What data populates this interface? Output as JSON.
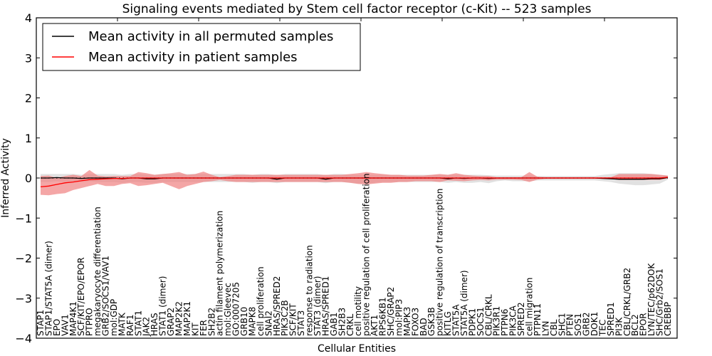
{
  "chart_data": {
    "type": "line",
    "title": "Signaling events mediated by Stem cell factor receptor (c-Kit) -- 523 samples",
    "xlabel": "Cellular Entities",
    "ylabel": "Inferred Activity",
    "ylim": [
      -4,
      4
    ],
    "yticks": [
      -4,
      -3,
      -2,
      -1,
      0,
      1,
      2,
      3,
      4
    ],
    "ytick_labels": [
      "−4",
      "−3",
      "−2",
      "−1",
      "0",
      "1",
      "2",
      "3",
      "4"
    ],
    "grid": false,
    "legend_position": "top-left",
    "legend": [
      {
        "label": "Mean activity in all permuted samples",
        "color": "#000000"
      },
      {
        "label": "Mean activity in patient samples",
        "color": "#ff0000"
      }
    ],
    "band_colors": {
      "permuted": "#d9d9d9",
      "patient": "#f08080"
    },
    "categories": [
      "STAP1",
      "STAP1/STAT5A (dimer)",
      "EPO",
      "VAV1",
      "MAP4K1",
      "SCF/KIT/EPO/EPOR",
      "PTPRO",
      "megakaryocyte differentiation",
      "GRB2/SOCS1/VAV1",
      "mol:GDP",
      "MATK",
      "RAF1",
      "STAT1",
      "JAK2",
      "HRAS",
      "STAT1 (dimer)",
      "GRAP2",
      "MAP2K2",
      "MAP2K1",
      "KIT",
      "FER",
      "SH2B2",
      "actin filament polymerization",
      "mol:Gleevec",
      "GO:0007205",
      "GRB10",
      "MAPK8",
      "cell proliferation",
      "SNAI2",
      "HRAS/SPRED2",
      "PIK3C2B",
      "SCF/KIT",
      "STAT3",
      "response to radiation",
      "STAT3 (dimer)",
      "HRAS/SPRED1",
      "GAB1",
      "SH2B3",
      "CRKL",
      "cell motility",
      "positive regulation of cell proliferation",
      "AKT1",
      "RPS6KB1",
      "SHC/GRAP2",
      "mol:PIP3",
      "MAPK3",
      "FOXO3",
      "BAD",
      "GSK3B",
      "positive regulation of transcription",
      "KITLG",
      "STAT5A",
      "STAT5A (dimer)",
      "PDPK1",
      "SOCS1",
      "CBL/CRKL",
      "PIK3R1",
      "PTPN6",
      "PIK3CA",
      "SPRED2",
      "cell migration",
      "PTPN11",
      "LYN",
      "CBL",
      "SHC1",
      "PTEN",
      "SOS1",
      "GRB2",
      "DOK1",
      "TEC",
      "SPRED1",
      "PI3K",
      "CBL/CRKL/GRB2",
      "BCL2",
      "EPOR",
      "LYN/TEC/p62DOK",
      "SHC/Grb2/SOS1",
      "CREBBP"
    ],
    "series": [
      {
        "name": "Mean activity in patient samples",
        "values": [
          -0.22,
          -0.2,
          -0.16,
          -0.12,
          -0.1,
          -0.07,
          -0.04,
          -0.03,
          -0.02,
          -0.01,
          -0.01,
          0.0,
          0.0,
          0.0,
          0.0,
          0.0,
          0.0,
          0.0,
          0.0,
          0.0,
          0.0,
          0.0,
          0.0,
          0.0,
          0.0,
          0.0,
          0.0,
          0.0,
          0.0,
          0.0,
          0.0,
          0.0,
          0.0,
          0.0,
          0.0,
          0.0,
          0.0,
          0.0,
          0.0,
          0.0,
          0.0,
          0.0,
          0.0,
          0.0,
          0.0,
          0.0,
          0.0,
          0.0,
          0.0,
          0.0,
          0.0,
          0.0,
          0.0,
          0.0,
          0.0,
          0.0,
          0.0,
          0.0,
          0.0,
          0.0,
          0.0,
          0.0,
          0.0,
          0.0,
          0.0,
          0.0,
          0.0,
          0.0,
          0.0,
          0.0,
          0.0,
          0.0,
          0.0,
          0.0,
          0.0,
          0.0,
          0.0,
          0.02
        ],
        "lower": [
          -0.42,
          -0.43,
          -0.4,
          -0.38,
          -0.3,
          -0.25,
          -0.2,
          -0.15,
          -0.2,
          -0.2,
          -0.15,
          -0.13,
          -0.2,
          -0.18,
          -0.15,
          -0.12,
          -0.2,
          -0.28,
          -0.2,
          -0.15,
          -0.1,
          -0.08,
          -0.05,
          -0.08,
          -0.1,
          -0.1,
          -0.1,
          -0.1,
          -0.1,
          -0.1,
          -0.1,
          -0.1,
          -0.1,
          -0.1,
          -0.1,
          -0.1,
          -0.1,
          -0.1,
          -0.12,
          -0.15,
          -0.16,
          -0.14,
          -0.12,
          -0.12,
          -0.1,
          -0.1,
          -0.08,
          -0.08,
          -0.08,
          -0.1,
          -0.06,
          -0.07,
          -0.08,
          -0.06,
          -0.05,
          -0.06,
          -0.04,
          -0.04,
          -0.04,
          -0.05,
          -0.1,
          -0.04,
          -0.02,
          -0.02,
          -0.02,
          -0.02,
          -0.02,
          -0.02,
          -0.02,
          -0.02,
          -0.02,
          -0.05,
          -0.05,
          -0.05,
          -0.05,
          -0.05,
          -0.05,
          -0.01
        ],
        "upper": [
          0.05,
          0.06,
          0.0,
          0.05,
          0.08,
          0.05,
          0.2,
          0.06,
          0.04,
          0.05,
          0.05,
          0.05,
          0.15,
          0.12,
          0.08,
          0.1,
          0.12,
          0.15,
          0.08,
          0.1,
          0.16,
          0.08,
          0.02,
          0.05,
          0.08,
          0.08,
          0.08,
          0.08,
          0.08,
          0.08,
          0.08,
          0.08,
          0.08,
          0.08,
          0.08,
          0.08,
          0.08,
          0.08,
          0.1,
          0.12,
          0.15,
          0.12,
          0.1,
          0.08,
          0.08,
          0.06,
          0.06,
          0.06,
          0.08,
          0.1,
          0.08,
          0.12,
          0.08,
          0.06,
          0.05,
          0.05,
          0.02,
          0.02,
          0.02,
          0.02,
          0.15,
          0.03,
          0.02,
          0.02,
          0.02,
          0.02,
          0.02,
          0.02,
          0.02,
          0.02,
          0.02,
          0.1,
          0.1,
          0.1,
          0.1,
          0.1,
          0.08,
          0.06
        ]
      },
      {
        "name": "Mean activity in all permuted samples",
        "values": [
          0.0,
          0.0,
          0.01,
          0.0,
          0.0,
          -0.01,
          0.0,
          0.0,
          0.0,
          0.0,
          -0.02,
          0.0,
          0.0,
          -0.02,
          -0.02,
          0.0,
          0.0,
          0.0,
          0.0,
          0.0,
          0.0,
          0.0,
          0.0,
          0.0,
          0.0,
          0.0,
          0.0,
          0.0,
          0.0,
          -0.03,
          0.0,
          0.0,
          0.0,
          0.0,
          0.0,
          -0.03,
          0.0,
          0.0,
          0.0,
          0.0,
          0.0,
          0.0,
          0.0,
          0.0,
          0.0,
          0.0,
          0.0,
          0.0,
          0.0,
          0.0,
          -0.02,
          0.0,
          -0.01,
          0.0,
          0.0,
          -0.01,
          0.0,
          0.0,
          0.0,
          0.0,
          0.0,
          0.0,
          0.0,
          0.0,
          0.0,
          0.0,
          0.0,
          0.0,
          0.0,
          -0.01,
          -0.02,
          -0.03,
          -0.03,
          -0.03,
          -0.03,
          -0.02,
          -0.02,
          0.01
        ],
        "lower": [
          -0.1,
          -0.1,
          -0.08,
          -0.1,
          -0.08,
          -0.1,
          -0.08,
          -0.1,
          -0.1,
          -0.1,
          -0.12,
          -0.1,
          -0.1,
          -0.12,
          -0.12,
          -0.1,
          -0.1,
          -0.1,
          -0.1,
          -0.1,
          -0.1,
          -0.1,
          -0.1,
          -0.1,
          -0.1,
          -0.1,
          -0.12,
          -0.1,
          -0.1,
          -0.13,
          -0.1,
          -0.1,
          -0.1,
          -0.1,
          -0.1,
          -0.13,
          -0.1,
          -0.1,
          -0.12,
          -0.14,
          -0.14,
          -0.12,
          -0.1,
          -0.1,
          -0.1,
          -0.1,
          -0.1,
          -0.1,
          -0.1,
          -0.1,
          -0.12,
          -0.1,
          -0.12,
          -0.12,
          -0.1,
          -0.13,
          -0.08,
          -0.06,
          -0.08,
          -0.08,
          -0.08,
          -0.06,
          -0.06,
          -0.06,
          -0.06,
          -0.06,
          -0.06,
          -0.06,
          -0.06,
          -0.08,
          -0.1,
          -0.14,
          -0.16,
          -0.18,
          -0.18,
          -0.16,
          -0.14,
          -0.04
        ],
        "upper": [
          0.1,
          0.1,
          0.1,
          0.1,
          0.1,
          0.08,
          0.1,
          0.1,
          0.1,
          0.1,
          0.08,
          0.1,
          0.1,
          0.08,
          0.08,
          0.1,
          0.1,
          0.1,
          0.1,
          0.1,
          0.1,
          0.1,
          0.1,
          0.1,
          0.1,
          0.1,
          0.08,
          0.1,
          0.1,
          0.07,
          0.1,
          0.1,
          0.1,
          0.1,
          0.1,
          0.07,
          0.1,
          0.1,
          0.08,
          0.08,
          0.08,
          0.08,
          0.08,
          0.08,
          0.08,
          0.08,
          0.08,
          0.08,
          0.08,
          0.08,
          0.08,
          0.08,
          0.08,
          0.08,
          0.08,
          0.07,
          0.06,
          0.06,
          0.06,
          0.06,
          0.06,
          0.05,
          0.05,
          0.05,
          0.05,
          0.05,
          0.05,
          0.05,
          0.05,
          0.08,
          0.1,
          0.12,
          0.12,
          0.12,
          0.12,
          0.1,
          0.08,
          0.06
        ]
      }
    ]
  }
}
